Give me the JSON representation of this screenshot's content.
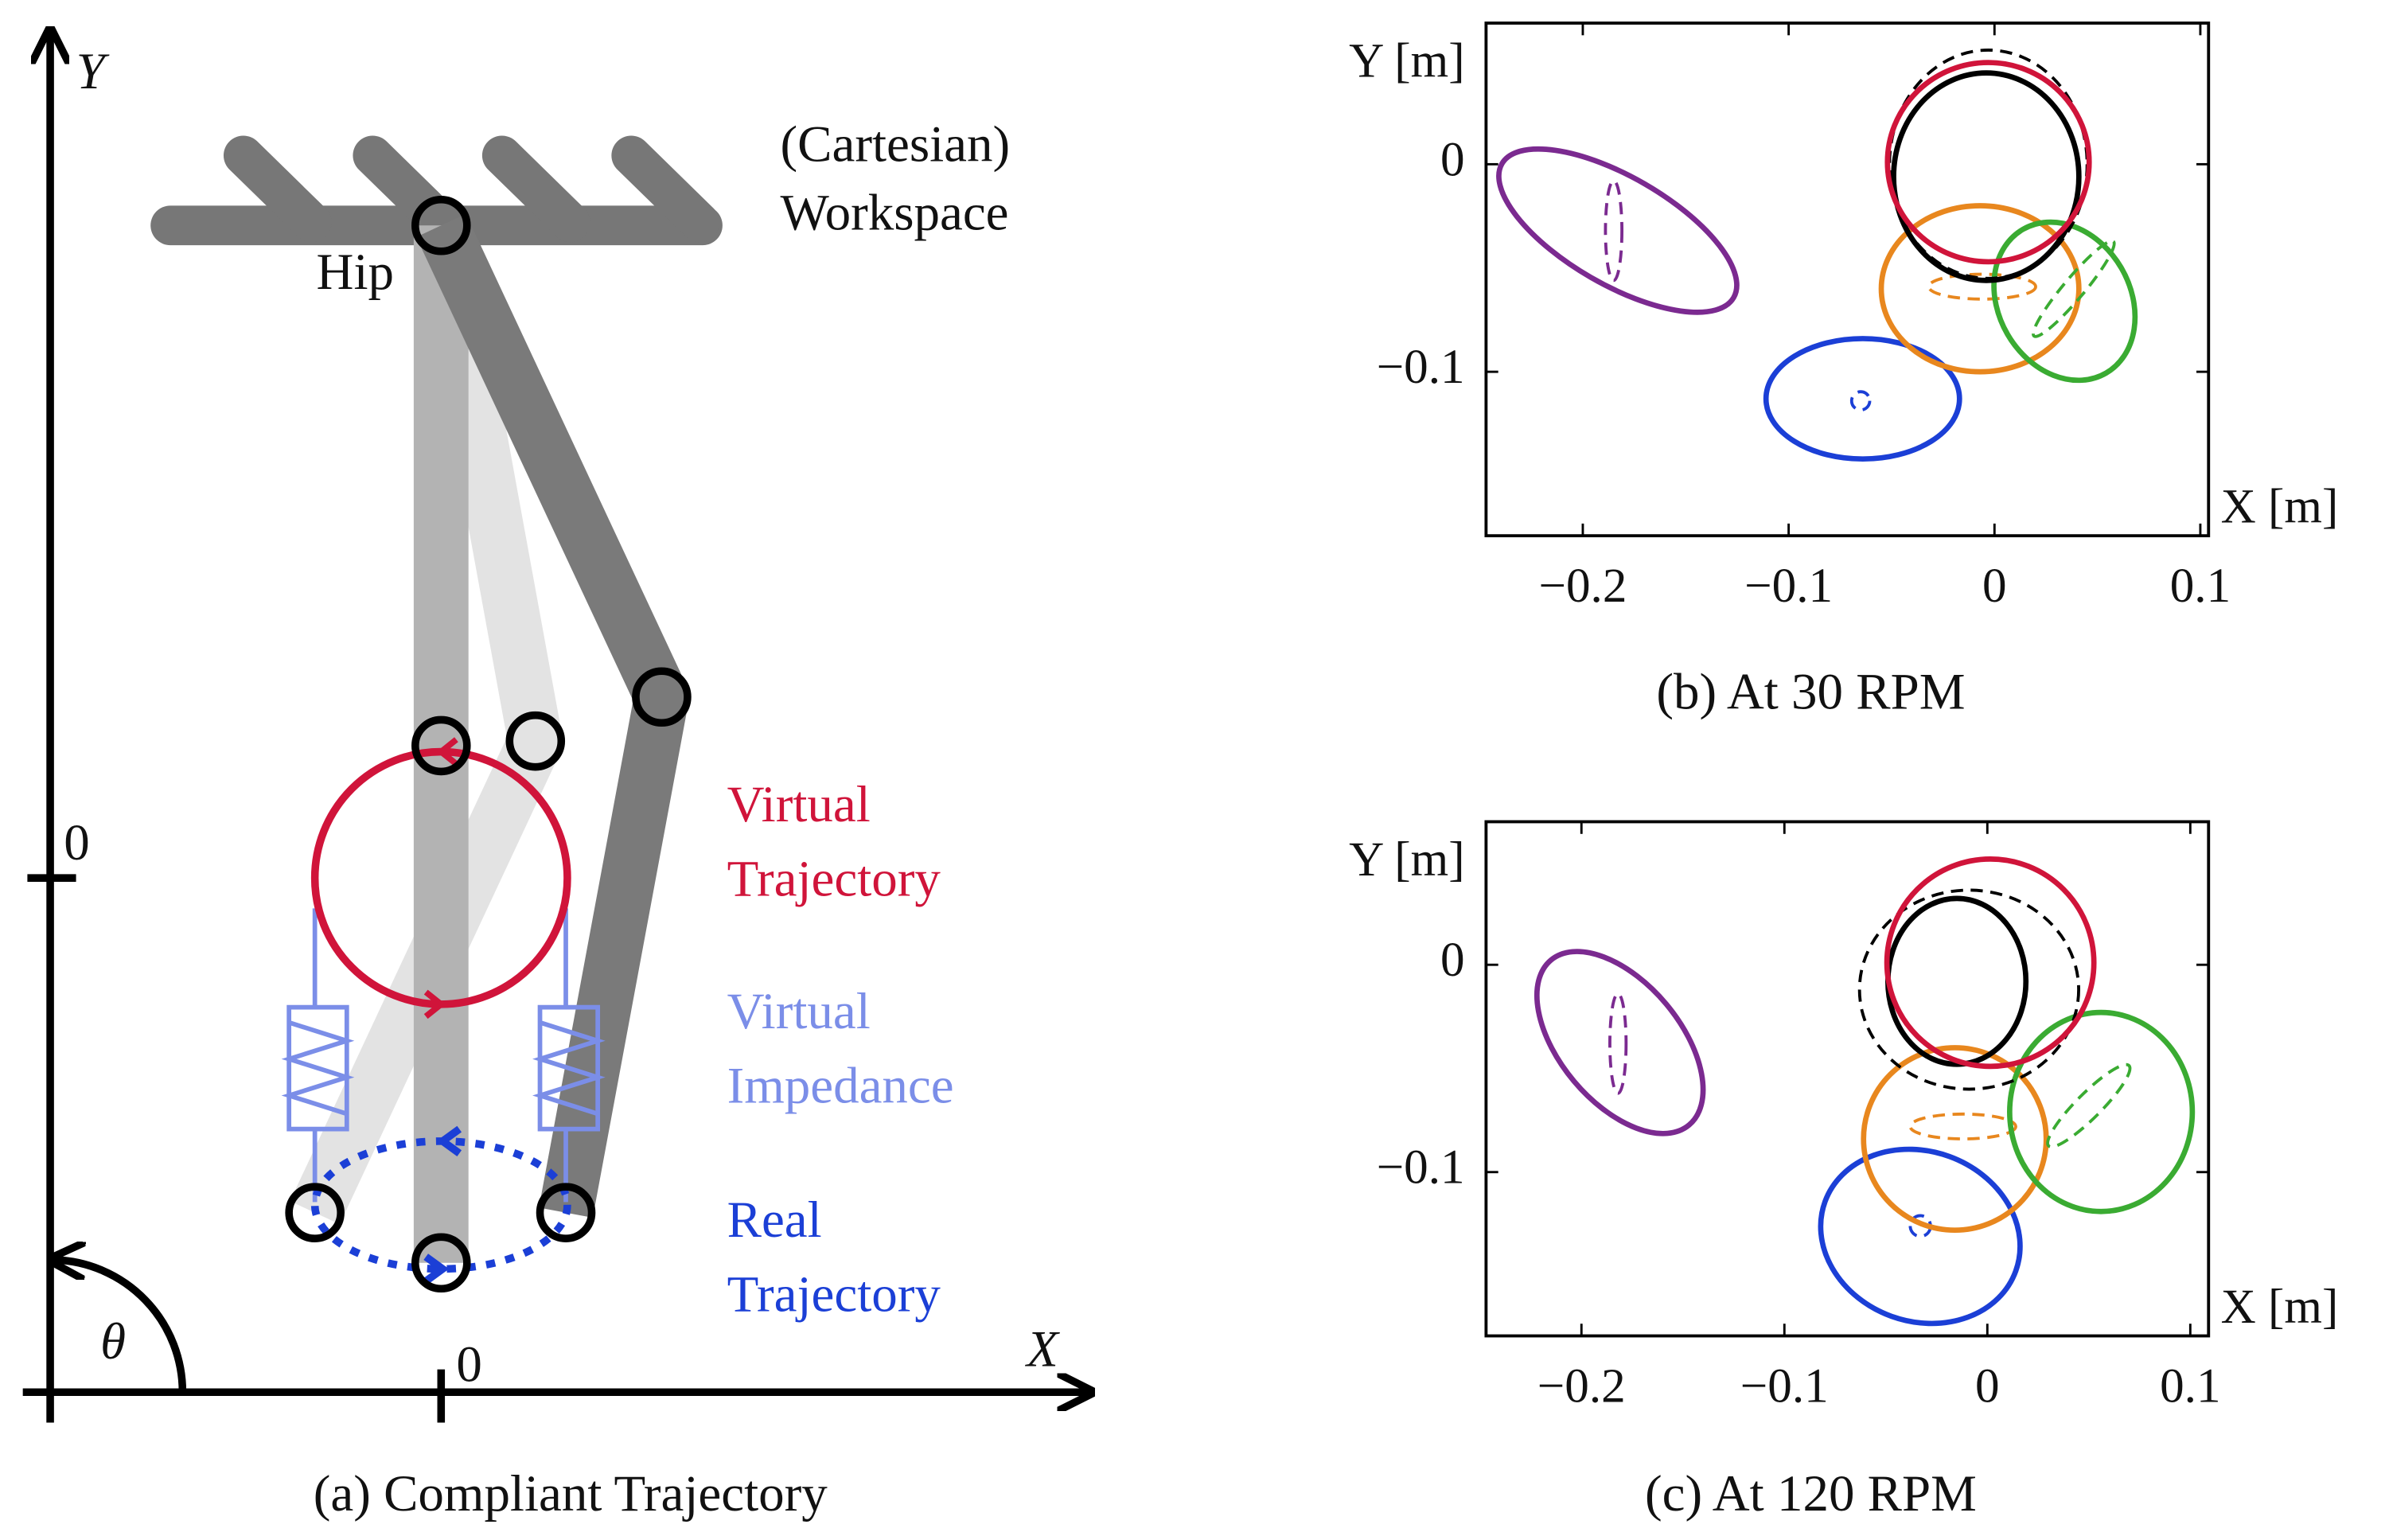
{
  "diagram": {
    "y_axis": "Y",
    "x_axis": "X",
    "angle": "θ",
    "y_origin": "0",
    "x_origin": "0",
    "hip": "Hip",
    "workspace": [
      "(Cartesian)",
      "Workspace"
    ],
    "virtual_trajectory": [
      "Virtual",
      "Trajectory"
    ],
    "virtual_impedance": [
      "Virtual",
      "Impedance"
    ],
    "real_trajectory": [
      "Real",
      "Trajectory"
    ],
    "caption": "(a) Compliant Trajectory"
  },
  "chart_data": [
    {
      "type": "ellipse",
      "caption": "(b) At 30 RPM",
      "xlabel": "X [m]",
      "ylabel": "Y [m]",
      "xlim": [
        -0.247,
        0.104
      ],
      "ylim": [
        -0.179,
        0.068
      ],
      "xticks": [
        {
          "value": -0.2,
          "label": "−0.2"
        },
        {
          "value": -0.1,
          "label": "−0.1"
        },
        0,
        0.1
      ],
      "yticks": [
        {
          "value": -0.1,
          "label": "−0.1"
        },
        0
      ],
      "shapes": [
        {
          "color": "#7b2a90",
          "cx": -0.183,
          "cy": -0.032,
          "rx": 0.065,
          "ry": 0.026,
          "angle": 30,
          "dashed": false
        },
        {
          "color": "#7b2a90",
          "cx": -0.185,
          "cy": -0.032,
          "rx": 0.004,
          "ry": 0.024,
          "angle": 0,
          "dashed": true
        },
        {
          "color": "#1b3fd6",
          "cx": -0.064,
          "cy": -0.113,
          "rx": 0.047,
          "ry": 0.029,
          "angle": 0,
          "dashed": false
        },
        {
          "color": "#1b3fd6",
          "cx": -0.065,
          "cy": -0.114,
          "rx": 0.0044,
          "ry": 0.0044,
          "angle": 0,
          "dashed": true
        },
        {
          "color": "#e8871e",
          "cx": -0.007,
          "cy": -0.06,
          "rx": 0.048,
          "ry": 0.04,
          "angle": 0,
          "dashed": false
        },
        {
          "color": "#e8871e",
          "cx": -0.006,
          "cy": -0.059,
          "rx": 0.026,
          "ry": 0.006,
          "angle": 0,
          "dashed": true
        },
        {
          "color": "#3aab32",
          "cx": 0.034,
          "cy": -0.066,
          "rx": 0.032,
          "ry": 0.04,
          "angle": -30,
          "dashed": false
        },
        {
          "color": "#3aab32",
          "cx": 0.0385,
          "cy": -0.06,
          "rx": 0.03,
          "ry": 0.005,
          "angle": -50,
          "dashed": true
        },
        {
          "color": "#000000",
          "cx": -0.003,
          "cy": 0.0,
          "rx": 0.048,
          "ry": 0.055,
          "angle": 0,
          "dashed": true
        },
        {
          "color": "#000000",
          "cx": -0.004,
          "cy": -0.006,
          "rx": 0.045,
          "ry": 0.05,
          "angle": 0,
          "dashed": false
        },
        {
          "color": "#d0143a",
          "cx": -0.003,
          "cy": 0.001,
          "rx": 0.049,
          "ry": 0.048,
          "angle": 0,
          "dashed": false
        }
      ]
    },
    {
      "type": "ellipse",
      "caption": "(c) At 120 RPM",
      "xlabel": "X [m]",
      "ylabel": "Y [m]",
      "xlim": [
        -0.247,
        0.109
      ],
      "ylim": [
        -0.179,
        0.069
      ],
      "xticks": [
        {
          "value": -0.2,
          "label": "−0.2"
        },
        {
          "value": -0.1,
          "label": "−0.1"
        },
        0,
        0.1
      ],
      "yticks": [
        {
          "value": -0.1,
          "label": "−0.1"
        },
        0
      ],
      "shapes": [
        {
          "color": "#7b2a90",
          "cx": -0.181,
          "cy": -0.0375,
          "rx": 0.053,
          "ry": 0.029,
          "angle": 50,
          "dashed": false
        },
        {
          "color": "#7b2a90",
          "cx": -0.182,
          "cy": -0.038,
          "rx": 0.004,
          "ry": 0.024,
          "angle": 0,
          "dashed": true
        },
        {
          "color": "#1b3fd6",
          "cx": -0.033,
          "cy": -0.131,
          "rx": 0.05,
          "ry": 0.041,
          "angle": 20,
          "dashed": false
        },
        {
          "color": "#1b3fd6",
          "cx": -0.033,
          "cy": -0.126,
          "rx": 0.005,
          "ry": 0.005,
          "angle": 0,
          "dashed": true
        },
        {
          "color": "#e8871e",
          "cx": -0.016,
          "cy": -0.084,
          "rx": 0.045,
          "ry": 0.044,
          "angle": 0,
          "dashed": false
        },
        {
          "color": "#e8871e",
          "cx": -0.012,
          "cy": -0.078,
          "rx": 0.026,
          "ry": 0.006,
          "angle": 0,
          "dashed": true
        },
        {
          "color": "#3aab32",
          "cx": 0.056,
          "cy": -0.071,
          "rx": 0.045,
          "ry": 0.048,
          "angle": 0,
          "dashed": false
        },
        {
          "color": "#3aab32",
          "cx": 0.05,
          "cy": -0.068,
          "rx": 0.028,
          "ry": 0.006,
          "angle": -45,
          "dashed": true
        },
        {
          "color": "#000000",
          "cx": -0.009,
          "cy": -0.012,
          "rx": 0.054,
          "ry": 0.048,
          "angle": 0,
          "dashed": true
        },
        {
          "color": "#000000",
          "cx": -0.015,
          "cy": -0.008,
          "rx": 0.034,
          "ry": 0.04,
          "angle": 0,
          "dashed": false
        },
        {
          "color": "#d0143a",
          "cx": 0.0015,
          "cy": 0.001,
          "rx": 0.051,
          "ry": 0.05,
          "angle": 0,
          "dashed": false
        }
      ]
    }
  ]
}
